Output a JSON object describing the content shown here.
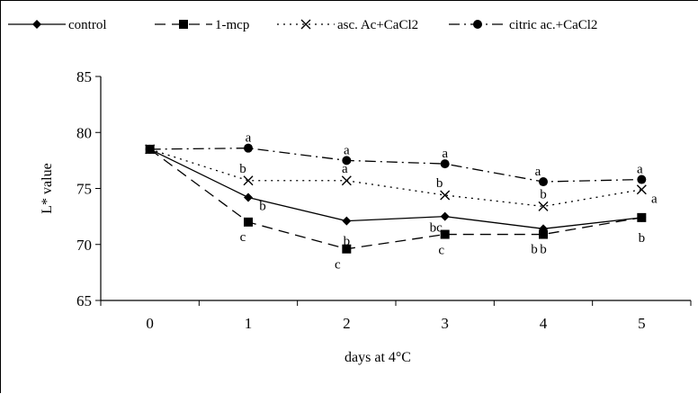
{
  "chart_data": {
    "type": "line",
    "title": "",
    "xlabel": "days at 4°C",
    "ylabel": "L* value",
    "x": [
      0,
      1,
      2,
      3,
      4,
      5
    ],
    "xlim": [
      -0.5,
      5.5
    ],
    "ylim": [
      65,
      85
    ],
    "yticks": [
      65,
      70,
      75,
      80,
      85
    ],
    "grid": false,
    "legend_position": "top",
    "series": [
      {
        "name": "control",
        "values": [
          78.5,
          74.2,
          72.1,
          72.5,
          71.4,
          72.4
        ],
        "labels": [
          "",
          "b",
          "b",
          "bc",
          "b",
          "b"
        ],
        "color": "#000000",
        "line": "solid",
        "marker": "diamond"
      },
      {
        "name": "1-mcp",
        "values": [
          78.5,
          72.0,
          69.6,
          70.9,
          70.9,
          72.4
        ],
        "labels": [
          "",
          "c",
          "c",
          "c",
          "b",
          ""
        ],
        "color": "#000000",
        "line": "dash",
        "marker": "square"
      },
      {
        "name": "asc. Ac+CaCl2",
        "values": [
          78.5,
          75.7,
          75.7,
          74.4,
          73.4,
          74.9
        ],
        "labels": [
          "",
          "b",
          "a",
          "b",
          "b",
          "a"
        ],
        "color": "#000000",
        "line": "dot",
        "marker": "x"
      },
      {
        "name": "citric ac.+CaCl2",
        "values": [
          78.5,
          78.6,
          77.5,
          77.2,
          75.6,
          75.8
        ],
        "labels": [
          "",
          "a",
          "a",
          "a",
          "a",
          "a"
        ],
        "color": "#000000",
        "line": "dashdot",
        "marker": "circle"
      }
    ]
  }
}
